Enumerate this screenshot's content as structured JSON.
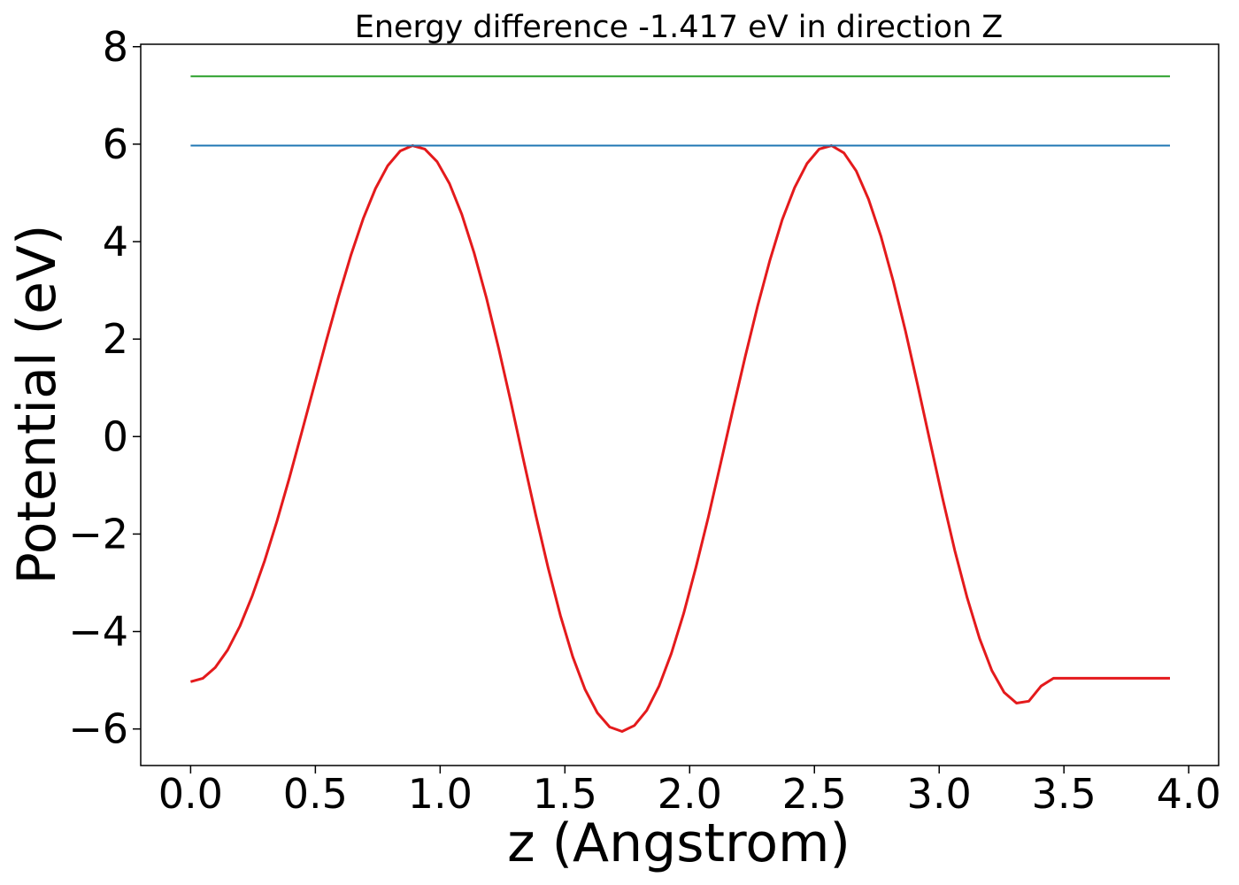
{
  "chart_data": {
    "type": "line",
    "title": "Energy difference -1.417 eV in direction Z",
    "xlabel": "z (Angstrom)",
    "ylabel": "Potential (eV)",
    "xlim": [
      -0.2,
      4.12
    ],
    "ylim": [
      -6.75,
      8.05
    ],
    "xticks": [
      0.0,
      0.5,
      1.0,
      1.5,
      2.0,
      2.5,
      3.0,
      3.5,
      4.0
    ],
    "xtick_labels": [
      "0.0",
      "0.5",
      "1.0",
      "1.5",
      "2.0",
      "2.5",
      "3.0",
      "3.5",
      "4.0"
    ],
    "yticks": [
      -6,
      -4,
      -2,
      0,
      2,
      4,
      6,
      8
    ],
    "ytick_labels": [
      "−6",
      "−4",
      "−2",
      "0",
      "2",
      "4",
      "6",
      "8"
    ],
    "grid": false,
    "series": [
      {
        "color": "#e41a1c",
        "x": [
          0.0,
          0.0494,
          0.0988,
          0.1482,
          0.1976,
          0.247,
          0.2964,
          0.3458,
          0.3952,
          0.4446,
          0.494,
          0.5434,
          0.5928,
          0.6422,
          0.6916,
          0.741,
          0.7904,
          0.8398,
          0.8892,
          0.9386,
          0.988,
          1.0374,
          1.0868,
          1.1362,
          1.1856,
          1.235,
          1.2844,
          1.3338,
          1.3832,
          1.4326,
          1.482,
          1.5314,
          1.5808,
          1.6302,
          1.6796,
          1.729,
          1.7784,
          1.8278,
          1.8772,
          1.9266,
          1.976,
          2.0254,
          2.0748,
          2.1242,
          2.1736,
          2.223,
          2.2724,
          2.3218,
          2.3712,
          2.4206,
          2.47,
          2.5194,
          2.5688,
          2.6182,
          2.6676,
          2.717,
          2.7664,
          2.8158,
          2.8652,
          2.9146,
          2.964,
          3.0134,
          3.0628,
          3.1122,
          3.1616,
          3.211,
          3.2604,
          3.3098,
          3.3592,
          3.4086,
          3.458,
          3.5074,
          3.5568,
          3.6062,
          3.6556,
          3.705,
          3.7544,
          3.8038,
          3.8532,
          3.9026,
          3.925
        ],
        "y": [
          -5.03,
          -4.96,
          -4.74,
          -4.38,
          -3.89,
          -3.27,
          -2.55,
          -1.74,
          -0.86,
          0.07,
          1.02,
          1.96,
          2.87,
          3.72,
          4.47,
          5.09,
          5.56,
          5.86,
          5.97,
          5.9,
          5.64,
          5.19,
          4.56,
          3.77,
          2.84,
          1.8,
          0.69,
          -0.47,
          -1.61,
          -2.69,
          -3.67,
          -4.52,
          -5.19,
          -5.67,
          -5.96,
          -6.05,
          -5.93,
          -5.62,
          -5.12,
          -4.45,
          -3.63,
          -2.68,
          -1.65,
          -0.55,
          0.56,
          1.65,
          2.68,
          3.62,
          4.45,
          5.11,
          5.6,
          5.9,
          5.97,
          5.82,
          5.45,
          4.87,
          4.11,
          3.19,
          2.16,
          1.04,
          -0.12,
          -1.26,
          -2.34,
          -3.31,
          -4.14,
          -4.8,
          -5.25,
          -5.47,
          -5.43,
          -5.12,
          -4.96,
          -4.96,
          -4.96,
          -4.96,
          -4.96,
          -4.96,
          -4.96,
          -4.96,
          -4.96,
          -4.96,
          -4.96
        ]
      },
      {
        "color": "#1f77b4",
        "x": [
          0.0,
          3.925
        ],
        "y": [
          5.97,
          5.97
        ]
      },
      {
        "color": "#2ca02c",
        "x": [
          0.0,
          3.925
        ],
        "y": [
          7.39,
          7.39
        ]
      }
    ]
  }
}
